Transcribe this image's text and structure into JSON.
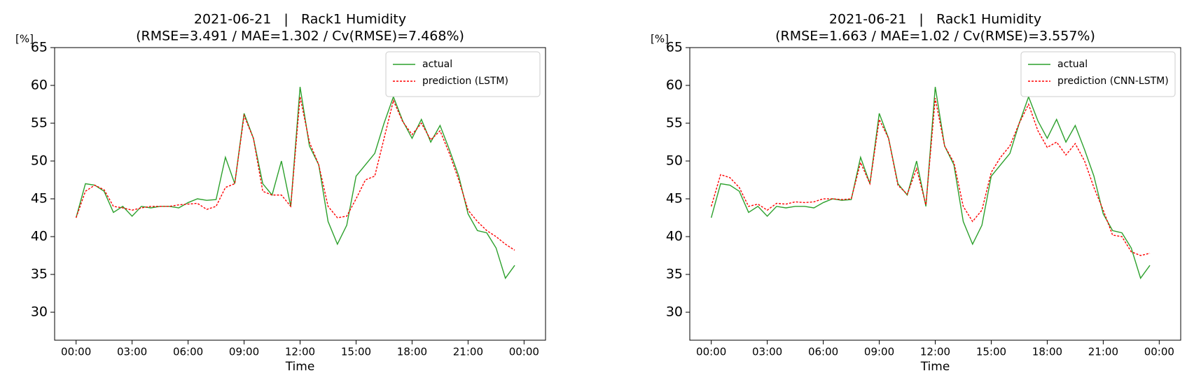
{
  "chart_data": [
    {
      "type": "line",
      "title": "2021-06-21   |   Rack1 Humidity",
      "subtitle": "(RMSE=3.491 / MAE=1.302 / Cv(RMSE)=7.468%)",
      "ylabel": "[%]",
      "xlabel": "Time",
      "legend": "upper right",
      "grid": false,
      "x": [
        0,
        0.5,
        1,
        1.5,
        2,
        2.5,
        3,
        3.5,
        4,
        4.5,
        5,
        5.5,
        6,
        6.5,
        7,
        7.5,
        8,
        8.5,
        9,
        9.5,
        10,
        10.5,
        11,
        11.5,
        12,
        12.5,
        13,
        13.5,
        14,
        14.5,
        15,
        15.5,
        16,
        16.5,
        17,
        17.5,
        18,
        18.5,
        19,
        19.5,
        20,
        20.5,
        21,
        21.5,
        22,
        22.5,
        23,
        23.5
      ],
      "series": [
        {
          "name": "actual",
          "color": "#2ca02c",
          "dash": "solid",
          "values": [
            42.5,
            47,
            46.8,
            46,
            43.2,
            44,
            42.7,
            44,
            43.8,
            44,
            44,
            43.8,
            44.5,
            45,
            44.8,
            44.9,
            50.5,
            47,
            56.3,
            53,
            47,
            45.5,
            50,
            44,
            59.8,
            52,
            49.5,
            42,
            39,
            41.5,
            48,
            49.5,
            51,
            55,
            58.5,
            55.3,
            53,
            55.5,
            52.5,
            54.7,
            51.5,
            48,
            43,
            40.8,
            40.5,
            38.5,
            34.5,
            36.2
          ]
        },
        {
          "name": "prediction (LSTM)",
          "color": "#ff0000",
          "dash": "dotted",
          "values": [
            42.5,
            46,
            46.8,
            46.2,
            44,
            43.8,
            43.5,
            43.8,
            44,
            44,
            44,
            44.2,
            44.3,
            44.4,
            43.6,
            44,
            46.5,
            47,
            56,
            53,
            46,
            45.5,
            45.5,
            44,
            58.5,
            52.5,
            49.5,
            44,
            42.5,
            42.7,
            45,
            47.5,
            48,
            53,
            58,
            55.2,
            53.5,
            55,
            52.8,
            54,
            51,
            47.5,
            43.5,
            42,
            40.8,
            40,
            39,
            38.2
          ]
        }
      ],
      "xlim": [
        -1.15,
        25.15
      ],
      "ylim": [
        26.3,
        65
      ],
      "xticks": [
        {
          "value": 0,
          "label": "00:00"
        },
        {
          "value": 3,
          "label": "03:00"
        },
        {
          "value": 6,
          "label": "06:00"
        },
        {
          "value": 9,
          "label": "09:00"
        },
        {
          "value": 12,
          "label": "12:00"
        },
        {
          "value": 15,
          "label": "15:00"
        },
        {
          "value": 18,
          "label": "18:00"
        },
        {
          "value": 21,
          "label": "21:00"
        },
        {
          "value": 24,
          "label": "00:00"
        }
      ],
      "yticks": [
        30,
        35,
        40,
        45,
        50,
        55,
        60,
        65
      ]
    },
    {
      "type": "line",
      "title": "2021-06-21   |   Rack1 Humidity",
      "subtitle": "(RMSE=1.663 / MAE=1.02 / Cv(RMSE)=3.557%)",
      "ylabel": "[%]",
      "xlabel": "Time",
      "legend": "upper right",
      "grid": false,
      "x": [
        0,
        0.5,
        1,
        1.5,
        2,
        2.5,
        3,
        3.5,
        4,
        4.5,
        5,
        5.5,
        6,
        6.5,
        7,
        7.5,
        8,
        8.5,
        9,
        9.5,
        10,
        10.5,
        11,
        11.5,
        12,
        12.5,
        13,
        13.5,
        14,
        14.5,
        15,
        15.5,
        16,
        16.5,
        17,
        17.5,
        18,
        18.5,
        19,
        19.5,
        20,
        20.5,
        21,
        21.5,
        22,
        22.5,
        23,
        23.5
      ],
      "series": [
        {
          "name": "actual",
          "color": "#2ca02c",
          "dash": "solid",
          "values": [
            42.5,
            47,
            46.8,
            46,
            43.2,
            44,
            42.7,
            44,
            43.8,
            44,
            44,
            43.8,
            44.5,
            45,
            44.8,
            44.9,
            50.5,
            47,
            56.3,
            53,
            47,
            45.5,
            50,
            44,
            59.8,
            52,
            49.5,
            42,
            39,
            41.5,
            48,
            49.5,
            51,
            55,
            58.5,
            55.3,
            53,
            55.5,
            52.5,
            54.7,
            51.5,
            48,
            43,
            40.8,
            40.5,
            38.5,
            34.5,
            36.2
          ]
        },
        {
          "name": "prediction (CNN-LSTM)",
          "color": "#ff0000",
          "dash": "dotted",
          "values": [
            44,
            48.2,
            47.8,
            46.5,
            44,
            44.3,
            43.5,
            44.4,
            44.3,
            44.6,
            44.5,
            44.6,
            45,
            45,
            44.9,
            45,
            49.8,
            47,
            55.5,
            53,
            46.8,
            45.6,
            49,
            44.2,
            58.3,
            52,
            49.8,
            44,
            42,
            43.5,
            48.5,
            50.5,
            52,
            55,
            57.5,
            54,
            51.8,
            52.5,
            50.8,
            52.3,
            50,
            46.5,
            43.5,
            40.2,
            40,
            38,
            37.5,
            37.8
          ]
        }
      ],
      "xlim": [
        -1.15,
        25.15
      ],
      "ylim": [
        26.3,
        65
      ],
      "xticks": [
        {
          "value": 0,
          "label": "00:00"
        },
        {
          "value": 3,
          "label": "03:00"
        },
        {
          "value": 6,
          "label": "06:00"
        },
        {
          "value": 9,
          "label": "09:00"
        },
        {
          "value": 12,
          "label": "12:00"
        },
        {
          "value": 15,
          "label": "15:00"
        },
        {
          "value": 18,
          "label": "18:00"
        },
        {
          "value": 21,
          "label": "21:00"
        },
        {
          "value": 24,
          "label": "00:00"
        }
      ],
      "yticks": [
        30,
        35,
        40,
        45,
        50,
        55,
        60,
        65
      ]
    }
  ]
}
